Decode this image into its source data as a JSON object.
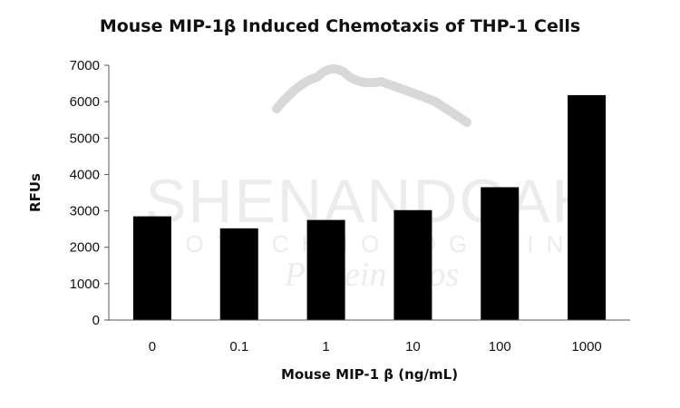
{
  "chart_data": {
    "type": "bar",
    "title": "Mouse MIP-1β Induced Chemotaxis of THP-1 Cells",
    "xlabel": "Mouse MIP-1 β (ng/mL)",
    "ylabel": "RFUs",
    "categories": [
      "0",
      "0.1",
      "1",
      "10",
      "100",
      "1000"
    ],
    "values": [
      2850,
      2520,
      2750,
      3020,
      3650,
      6180
    ],
    "ylim": [
      0,
      7000
    ],
    "yticks": [
      0,
      1000,
      2000,
      3000,
      4000,
      5000,
      6000,
      7000
    ],
    "grid": false,
    "legend": "none",
    "bar_color": "#000000",
    "axis_color": "#555555"
  },
  "watermark": {
    "brand": "SHENANDOAH",
    "line2": "BIOTECHNOLOGY INC",
    "line3": "Protein Pros"
  }
}
